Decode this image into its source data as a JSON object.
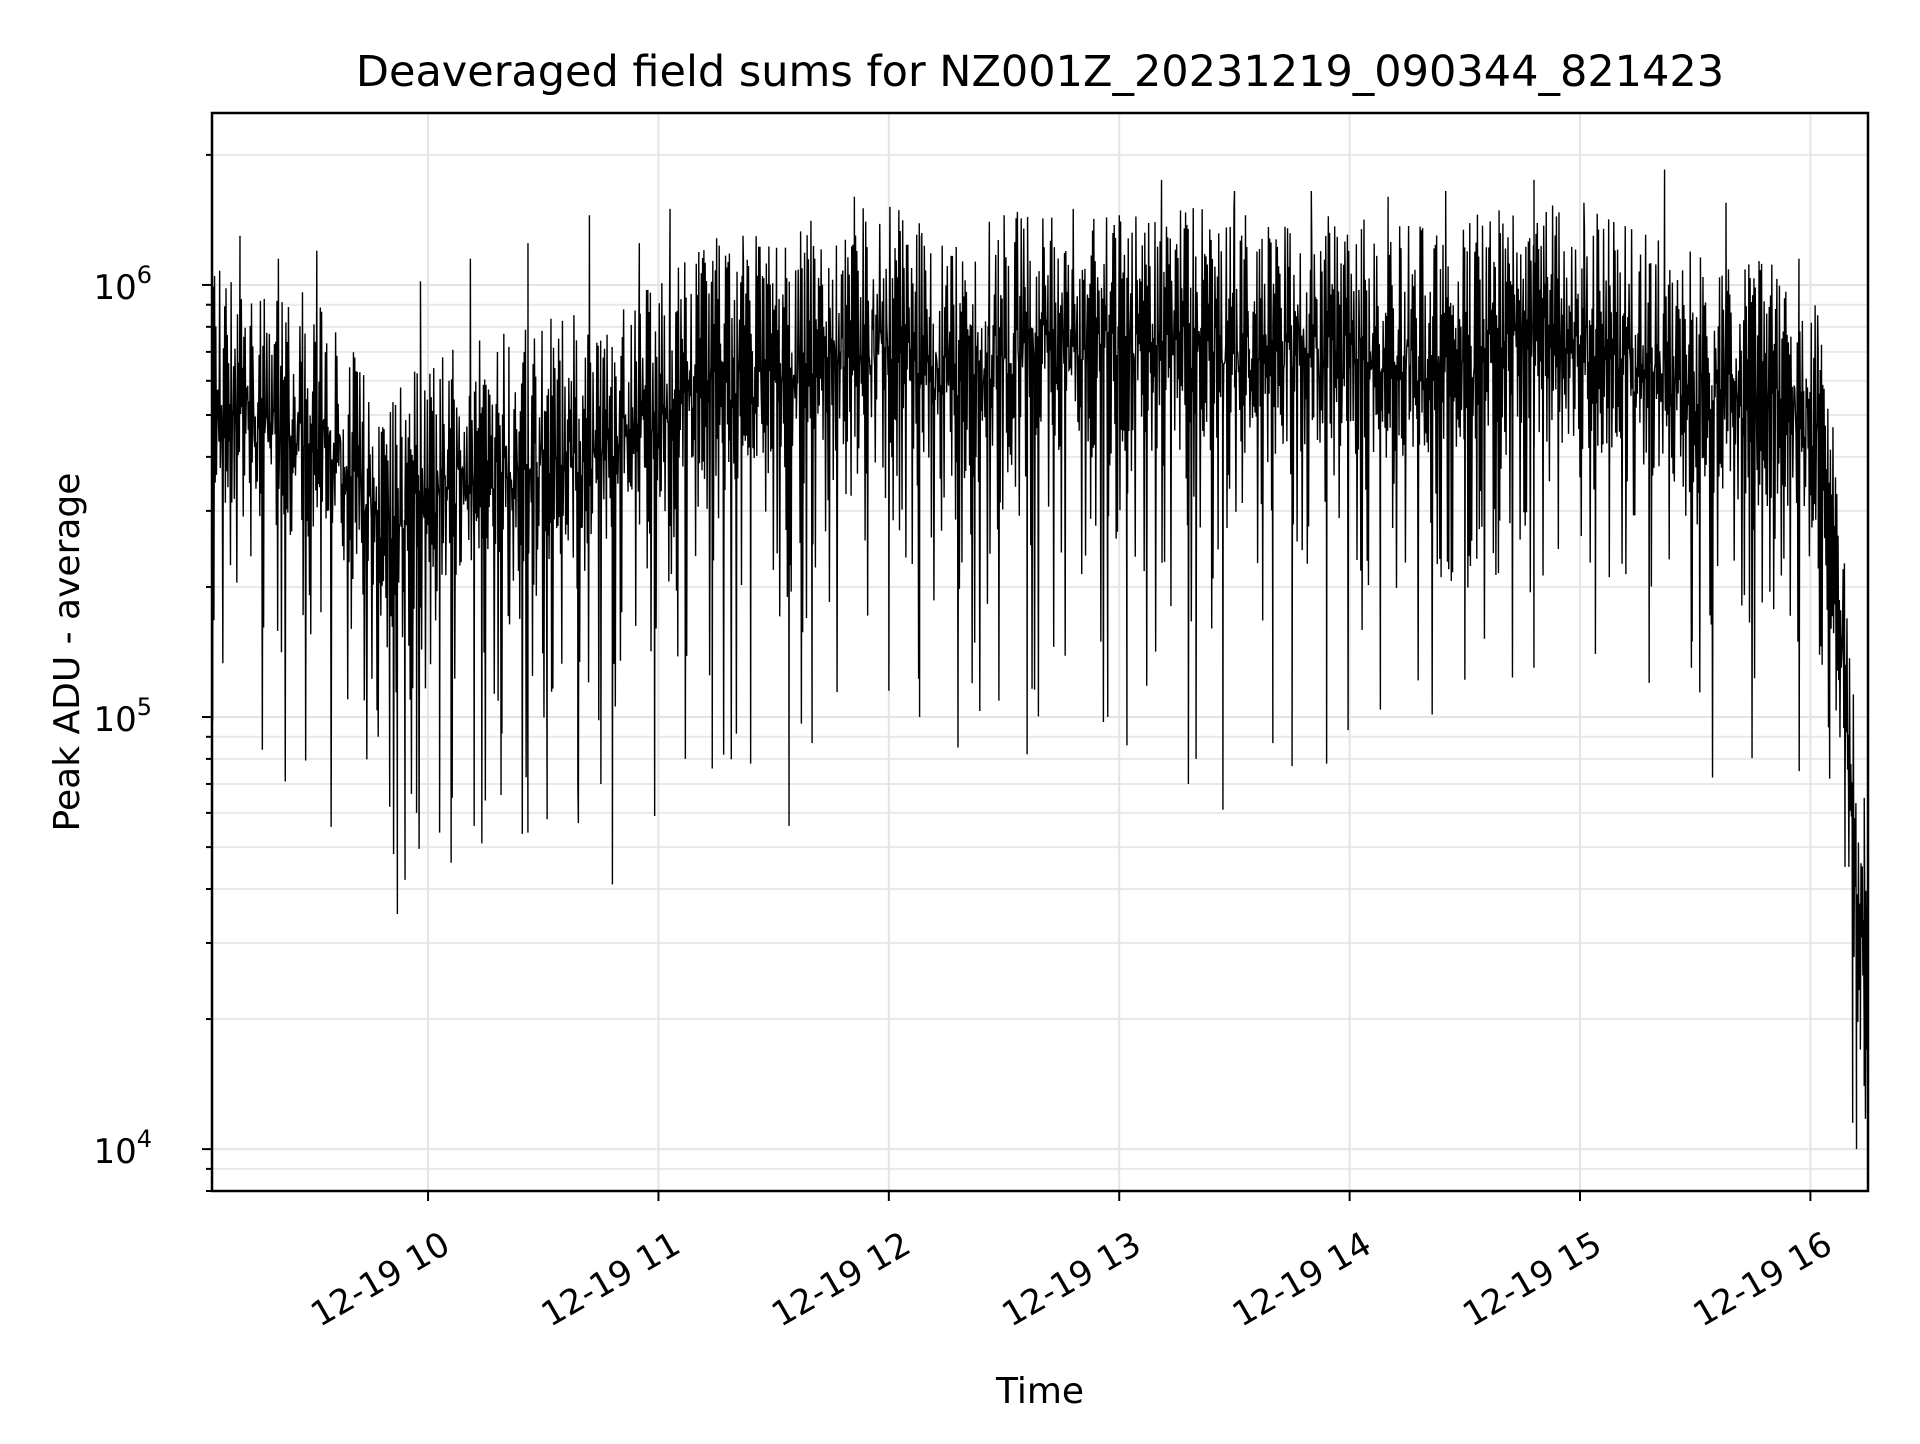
{
  "chart_data": {
    "type": "line",
    "title": "Deaveraged field sums for NZ001Z_20231219_090344_821423",
    "xlabel": "Time",
    "ylabel": "Peak ADU - average",
    "yscale": "log",
    "ylim": [
      8000,
      2500000
    ],
    "xlim": [
      "2023-12-19 09:03:44",
      "2023-12-19 16:15:00"
    ],
    "grid": true,
    "legend": "none",
    "line_color": "#000000",
    "x_ticks": [
      "2023-12-19 10:00",
      "2023-12-19 11:00",
      "2023-12-19 12:00",
      "2023-12-19 13:00",
      "2023-12-19 14:00",
      "2023-12-19 15:00",
      "2023-12-19 16:00"
    ],
    "x_tick_labels": [
      "12-19 10",
      "12-19 11",
      "12-19 12",
      "12-19 13",
      "12-19 14",
      "12-19 15",
      "12-19 16"
    ],
    "y_ticks": [
      10000,
      100000,
      1000000
    ],
    "y_tick_labels": [
      {
        "base": "10",
        "exp": "4"
      },
      {
        "base": "10",
        "exp": "5"
      },
      {
        "base": "10",
        "exp": "6"
      }
    ],
    "series": [
      {
        "x": [
          "2023-12-19 09:04",
          "2023-12-19 09:15",
          "2023-12-19 09:30",
          "2023-12-19 09:40",
          "2023-12-19 09:48",
          "2023-12-19 10:00",
          "2023-12-19 10:15",
          "2023-12-19 10:30",
          "2023-12-19 10:45",
          "2023-12-19 11:00",
          "2023-12-19 11:15",
          "2023-12-19 11:30",
          "2023-12-19 11:45",
          "2023-12-19 12:00",
          "2023-12-19 12:15",
          "2023-12-19 12:30",
          "2023-12-19 12:45",
          "2023-12-19 13:00",
          "2023-12-19 13:15",
          "2023-12-19 13:30",
          "2023-12-19 13:45",
          "2023-12-19 14:00",
          "2023-12-19 14:15",
          "2023-12-19 14:30",
          "2023-12-19 14:45",
          "2023-12-19 15:00",
          "2023-12-19 15:15",
          "2023-12-19 15:30",
          "2023-12-19 15:45",
          "2023-12-19 15:55",
          "2023-12-19 16:03",
          "2023-12-19 16:08",
          "2023-12-19 16:12",
          "2023-12-19 16:15"
        ],
        "baseline": [
          600000,
          560000,
          520000,
          420000,
          300000,
          380000,
          420000,
          450000,
          480000,
          560000,
          700000,
          720000,
          800000,
          850000,
          700000,
          800000,
          820000,
          800000,
          820000,
          820000,
          800000,
          780000,
          750000,
          780000,
          850000,
          830000,
          720000,
          650000,
          620000,
          600000,
          480000,
          180000,
          50000,
          28000
        ],
        "dips": [
          [
            "2023-12-19 09:40",
            160000
          ],
          [
            "2023-12-19 09:47",
            90000
          ],
          [
            "2023-12-19 09:50",
            62000
          ],
          [
            "2023-12-19 09:52",
            35000
          ],
          [
            "2023-12-19 09:54",
            42000
          ],
          [
            "2023-12-19 09:57",
            60000
          ],
          [
            "2023-12-19 10:03",
            54000
          ],
          [
            "2023-12-19 10:06",
            46000
          ],
          [
            "2023-12-19 10:12",
            56000
          ],
          [
            "2023-12-19 10:14",
            51000
          ],
          [
            "2023-12-19 10:19",
            66000
          ],
          [
            "2023-12-19 10:26",
            54000
          ],
          [
            "2023-12-19 10:31",
            58000
          ],
          [
            "2023-12-19 10:39",
            70000
          ],
          [
            "2023-12-19 10:45",
            70000
          ],
          [
            "2023-12-19 10:48",
            41000
          ],
          [
            "2023-12-19 10:59",
            59000
          ],
          [
            "2023-12-19 11:07",
            80000
          ],
          [
            "2023-12-19 11:14",
            76000
          ],
          [
            "2023-12-19 11:24",
            78000
          ],
          [
            "2023-12-19 11:34",
            56000
          ],
          [
            "2023-12-19 11:40",
            87000
          ],
          [
            "2023-12-19 12:00",
            115000
          ],
          [
            "2023-12-19 12:08",
            100000
          ],
          [
            "2023-12-19 12:18",
            85000
          ],
          [
            "2023-12-19 12:36",
            82000
          ],
          [
            "2023-12-19 12:57",
            100000
          ],
          [
            "2023-12-19 13:02",
            86000
          ],
          [
            "2023-12-19 13:18",
            70000
          ],
          [
            "2023-12-19 13:20",
            80000
          ],
          [
            "2023-12-19 13:27",
            61000
          ],
          [
            "2023-12-19 13:40",
            87000
          ],
          [
            "2023-12-19 13:45",
            77000
          ],
          [
            "2023-12-19 13:54",
            78000
          ],
          [
            "2023-12-19 14:08",
            104000
          ],
          [
            "2023-12-19 14:30",
            122000
          ],
          [
            "2023-12-19 14:48",
            130000
          ],
          [
            "2023-12-19 15:04",
            140000
          ],
          [
            "2023-12-19 15:18",
            120000
          ],
          [
            "2023-12-19 15:29",
            130000
          ],
          [
            "2023-12-19 16:05",
            72000
          ],
          [
            "2023-12-19 16:09",
            45000
          ],
          [
            "2023-12-19 16:11",
            11500
          ],
          [
            "2023-12-19 16:12",
            10000
          ],
          [
            "2023-12-19 16:13",
            17000
          ],
          [
            "2023-12-19 16:14",
            14000
          ],
          [
            "2023-12-19 16:15",
            16000
          ]
        ],
        "peaks": [
          [
            "2023-12-19 09:11",
            1300000
          ],
          [
            "2023-12-19 09:21",
            1150000
          ],
          [
            "2023-12-19 09:31",
            1200000
          ],
          [
            "2023-12-19 09:58",
            1020000
          ],
          [
            "2023-12-19 10:11",
            1150000
          ],
          [
            "2023-12-19 10:26",
            1250000
          ],
          [
            "2023-12-19 10:42",
            1450000
          ],
          [
            "2023-12-19 10:55",
            1250000
          ],
          [
            "2023-12-19 11:03",
            1500000
          ],
          [
            "2023-12-19 11:22",
            1300000
          ],
          [
            "2023-12-19 11:37",
            1330000
          ],
          [
            "2023-12-19 11:51",
            1600000
          ],
          [
            "2023-12-19 12:08",
            1300000
          ],
          [
            "2023-12-19 12:30",
            1450000
          ],
          [
            "2023-12-19 12:48",
            1500000
          ],
          [
            "2023-12-19 13:00",
            1450000
          ],
          [
            "2023-12-19 13:11",
            1750000
          ],
          [
            "2023-12-19 13:30",
            1650000
          ],
          [
            "2023-12-19 13:50",
            1650000
          ],
          [
            "2023-12-19 14:10",
            1600000
          ],
          [
            "2023-12-19 14:25",
            1650000
          ],
          [
            "2023-12-19 14:48",
            1750000
          ],
          [
            "2023-12-19 15:01",
            1550000
          ],
          [
            "2023-12-19 15:22",
            1850000
          ],
          [
            "2023-12-19 15:38",
            1550000
          ],
          [
            "2023-12-19 15:57",
            1150000
          ],
          [
            "2023-12-19 16:02",
            700000
          ],
          [
            "2023-12-19 16:14",
            65000
          ]
        ]
      }
    ]
  }
}
